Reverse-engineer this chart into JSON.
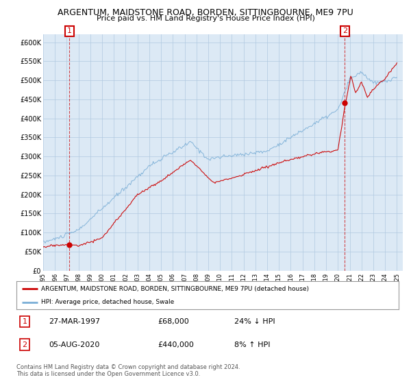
{
  "title": "ARGENTUM, MAIDSTONE ROAD, BORDEN, SITTINGBOURNE, ME9 7PU",
  "subtitle": "Price paid vs. HM Land Registry's House Price Index (HPI)",
  "ylim": [
    0,
    620000
  ],
  "yticks": [
    0,
    50000,
    100000,
    150000,
    200000,
    250000,
    300000,
    350000,
    400000,
    450000,
    500000,
    550000,
    600000
  ],
  "ytick_labels": [
    "£0",
    "£50K",
    "£100K",
    "£150K",
    "£200K",
    "£250K",
    "£300K",
    "£350K",
    "£400K",
    "£450K",
    "£500K",
    "£550K",
    "£600K"
  ],
  "sale1_date": "27-MAR-1997",
  "sale1_price": 68000,
  "sale1_price_str": "£68,000",
  "sale1_hpi": "24% ↓ HPI",
  "sale1_x": 1997.23,
  "sale1_y": 68000,
  "sale2_date": "05-AUG-2020",
  "sale2_price": 440000,
  "sale2_price_str": "£440,000",
  "sale2_hpi": "8% ↑ HPI",
  "sale2_x": 2020.59,
  "sale2_y": 440000,
  "legend_line1": "ARGENTUM, MAIDSTONE ROAD, BORDEN, SITTINGBOURNE, ME9 7PU (detached house)",
  "legend_line2": "HPI: Average price, detached house, Swale",
  "footer": "Contains HM Land Registry data © Crown copyright and database right 2024.\nThis data is licensed under the Open Government Licence v3.0.",
  "line_color_red": "#cc0000",
  "line_color_blue": "#7aaed6",
  "background_color": "#ffffff",
  "chart_bg_color": "#dce9f5",
  "grid_color": "#b0c8e0",
  "xmin": 1995,
  "xmax": 2025.5
}
